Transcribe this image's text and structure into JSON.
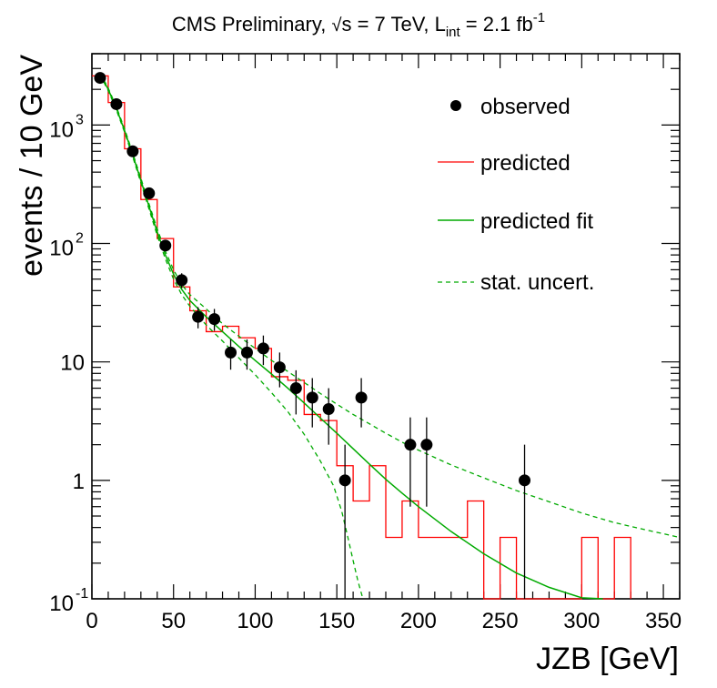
{
  "chart_data": {
    "type": "histogram-log",
    "title_main": "CMS Preliminary, ",
    "title_sqrt": "√",
    "title_s": "s = 7 TeV, L",
    "title_sub": "int",
    "title_rest": " = 2.1 fb",
    "title_sup": "-1",
    "xlabel": "JZB [GeV]",
    "ylabel": "events / 10 GeV",
    "xlim": [
      0,
      360
    ],
    "ylim": [
      0.1,
      4000
    ],
    "x_ticks": [
      0,
      50,
      100,
      150,
      200,
      250,
      300,
      350
    ],
    "x_tick_labels": [
      "0",
      "50",
      "100",
      "150",
      "200",
      "250",
      "300",
      "350"
    ],
    "y_ticks": [
      {
        "value": 0.1,
        "base": "10",
        "sup": "-1"
      },
      {
        "value": 1,
        "base": "1",
        "sup": ""
      },
      {
        "value": 10,
        "base": "10",
        "sup": ""
      },
      {
        "value": 100,
        "base": "10",
        "sup": "2"
      },
      {
        "value": 1000,
        "base": "10",
        "sup": "3"
      }
    ],
    "legend": [
      {
        "label": "observed",
        "style": "marker"
      },
      {
        "label": "predicted",
        "style": "red-line"
      },
      {
        "label": "predicted fit",
        "style": "green-line"
      },
      {
        "label": "stat. uncert.",
        "style": "green-dashed"
      }
    ],
    "colors": {
      "observed": "#000000",
      "predicted": "#ff0000",
      "fit": "#00aa00"
    },
    "observed": [
      {
        "x": 5,
        "y": 2500,
        "lo": 2450,
        "hi": 2550
      },
      {
        "x": 15,
        "y": 1500,
        "lo": 1460,
        "hi": 1540
      },
      {
        "x": 25,
        "y": 600,
        "lo": 575,
        "hi": 625
      },
      {
        "x": 35,
        "y": 265,
        "lo": 249,
        "hi": 281
      },
      {
        "x": 45,
        "y": 96,
        "lo": 86,
        "hi": 106
      },
      {
        "x": 55,
        "y": 49,
        "lo": 42,
        "hi": 56
      },
      {
        "x": 65,
        "y": 24,
        "lo": 19.2,
        "hi": 29
      },
      {
        "x": 75,
        "y": 23,
        "lo": 18.3,
        "hi": 28
      },
      {
        "x": 85,
        "y": 12,
        "lo": 8.6,
        "hi": 15.5
      },
      {
        "x": 95,
        "y": 12,
        "lo": 8.6,
        "hi": 15.5
      },
      {
        "x": 105,
        "y": 13,
        "lo": 9.4,
        "hi": 16.7
      },
      {
        "x": 115,
        "y": 9,
        "lo": 6.1,
        "hi": 12
      },
      {
        "x": 125,
        "y": 6,
        "lo": 3.6,
        "hi": 8.5
      },
      {
        "x": 135,
        "y": 5,
        "lo": 2.8,
        "hi": 7.3
      },
      {
        "x": 145,
        "y": 4,
        "lo": 2.0,
        "hi": 6.0
      },
      {
        "x": 155,
        "y": 1,
        "lo": 0.08,
        "hi": 2.0
      },
      {
        "x": 165,
        "y": 5,
        "lo": 2.8,
        "hi": 7.3
      },
      {
        "x": 195,
        "y": 2,
        "lo": 0.6,
        "hi": 3.4
      },
      {
        "x": 205,
        "y": 2,
        "lo": 0.6,
        "hi": 3.4
      },
      {
        "x": 265,
        "y": 1,
        "lo": 0.08,
        "hi": 2.0
      }
    ],
    "predicted_bin_edges": [
      0,
      10,
      20,
      30,
      40,
      50,
      60,
      70,
      80,
      90,
      100,
      110,
      120,
      130,
      140,
      150,
      160,
      170,
      180,
      190,
      200,
      210,
      220,
      230,
      240,
      250,
      260,
      270,
      280,
      290,
      300,
      310,
      320,
      330
    ],
    "predicted_values": [
      2600,
      1550,
      630,
      235,
      110,
      43,
      27,
      18,
      20,
      16,
      13,
      7.5,
      7.0,
      3.6,
      3.2,
      1.33,
      0.67,
      1.33,
      0.33,
      0.67,
      0.33,
      0.33,
      0.33,
      0.67,
      0.05,
      0.33,
      0.05,
      0.05,
      0.05,
      0.05,
      0.33,
      0.05,
      0.33
    ],
    "fit_points": [
      [
        5,
        2700
      ],
      [
        10,
        2000
      ],
      [
        15,
        1380
      ],
      [
        20,
        900
      ],
      [
        25,
        560
      ],
      [
        30,
        340
      ],
      [
        35,
        205
      ],
      [
        40,
        125
      ],
      [
        45,
        80
      ],
      [
        50,
        55
      ],
      [
        55,
        41
      ],
      [
        60,
        33
      ],
      [
        70,
        24
      ],
      [
        80,
        18
      ],
      [
        90,
        13.5
      ],
      [
        100,
        10.3
      ],
      [
        110,
        7.9
      ],
      [
        120,
        6.0
      ],
      [
        130,
        4.5
      ],
      [
        140,
        3.35
      ],
      [
        150,
        2.5
      ],
      [
        160,
        1.85
      ],
      [
        170,
        1.37
      ],
      [
        180,
        1.02
      ],
      [
        190,
        0.78
      ],
      [
        200,
        0.6
      ],
      [
        220,
        0.37
      ],
      [
        240,
        0.24
      ],
      [
        260,
        0.165
      ],
      [
        280,
        0.125
      ],
      [
        300,
        0.102
      ],
      [
        313,
        0.093
      ]
    ],
    "uncert_upper_points": [
      [
        5,
        2750
      ],
      [
        10,
        2050
      ],
      [
        15,
        1420
      ],
      [
        20,
        930
      ],
      [
        25,
        580
      ],
      [
        30,
        355
      ],
      [
        35,
        215
      ],
      [
        40,
        133
      ],
      [
        45,
        86
      ],
      [
        50,
        60
      ],
      [
        55,
        45
      ],
      [
        60,
        37
      ],
      [
        70,
        28
      ],
      [
        80,
        21
      ],
      [
        90,
        16.5
      ],
      [
        100,
        13
      ],
      [
        110,
        10.3
      ],
      [
        120,
        8.3
      ],
      [
        130,
        6.7
      ],
      [
        140,
        5.4
      ],
      [
        150,
        4.4
      ],
      [
        160,
        3.6
      ],
      [
        170,
        3.0
      ],
      [
        180,
        2.5
      ],
      [
        190,
        2.1
      ],
      [
        200,
        1.8
      ],
      [
        220,
        1.35
      ],
      [
        240,
        1.05
      ],
      [
        260,
        0.82
      ],
      [
        280,
        0.66
      ],
      [
        300,
        0.53
      ],
      [
        320,
        0.44
      ],
      [
        340,
        0.38
      ],
      [
        360,
        0.33
      ]
    ],
    "uncert_lower_points": [
      [
        5,
        2650
      ],
      [
        10,
        1950
      ],
      [
        15,
        1340
      ],
      [
        20,
        870
      ],
      [
        25,
        540
      ],
      [
        30,
        325
      ],
      [
        35,
        195
      ],
      [
        40,
        117
      ],
      [
        45,
        74
      ],
      [
        50,
        50
      ],
      [
        55,
        37
      ],
      [
        60,
        29.5
      ],
      [
        70,
        20.5
      ],
      [
        80,
        15
      ],
      [
        90,
        10.8
      ],
      [
        100,
        7.8
      ],
      [
        110,
        5.5
      ],
      [
        120,
        3.8
      ],
      [
        130,
        2.45
      ],
      [
        140,
        1.45
      ],
      [
        148,
        0.9
      ],
      [
        153,
        0.55
      ],
      [
        157,
        0.32
      ],
      [
        160,
        0.21
      ],
      [
        163,
        0.14
      ],
      [
        166,
        0.1
      ]
    ]
  }
}
